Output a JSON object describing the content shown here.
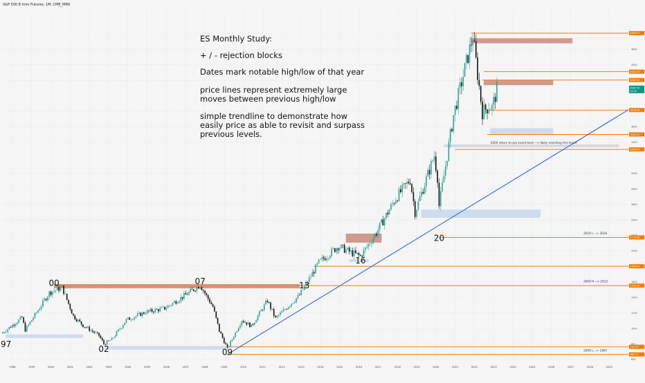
{
  "header": {
    "symbol": "S&P 500 E-mini Futures, 1M, CME_MINI",
    "currency": "USD"
  },
  "notes": [
    "ES Monthly Study:",
    "+ / - rejection blocks",
    "Dates mark notable high/low of that year",
    "price lines represent extremely large",
    "moves between previous high/low",
    "simple trendline to demonstrate how",
    "easily price as able to revisit and surpass",
    "previous levels."
  ],
  "chart_data": {
    "type": "candlestick",
    "x_range": [
      "1997-07",
      "2030-01"
    ],
    "ylim": [
      600,
      5200
    ],
    "x_ticks": [
      "1998",
      "1999",
      "2000",
      "2001",
      "2002",
      "2003",
      "2004",
      "2005",
      "2006",
      "2007",
      "2008",
      "2009",
      "2010",
      "2011",
      "2012",
      "2013",
      "2014",
      "2015",
      "2016",
      "2017",
      "2018",
      "2019",
      "2020",
      "2021",
      "2022",
      "2023",
      "2024",
      "2025",
      "2026",
      "2027",
      "2028",
      "2029"
    ],
    "y_ticks": [
      4800,
      4600,
      4400,
      4200,
      3800,
      3600,
      3400,
      3000,
      2800,
      2600,
      2400,
      2200,
      2000,
      1800,
      1600,
      1400,
      1200,
      1000,
      800,
      600
    ],
    "price_series": [
      {
        "date": "1997-07",
        "close": 945
      },
      {
        "date": "1998-07",
        "close": 1140
      },
      {
        "date": "1998-09",
        "close": 980
      },
      {
        "date": "1999-12",
        "close": 1460
      },
      {
        "date": "2000-08",
        "close": 1530
      },
      {
        "date": "2001-03",
        "close": 1160
      },
      {
        "date": "2001-09",
        "close": 1040
      },
      {
        "date": "2002-07",
        "close": 910
      },
      {
        "date": "2002-10",
        "close": 800
      },
      {
        "date": "2003-03",
        "close": 860
      },
      {
        "date": "2003-12",
        "close": 1110
      },
      {
        "date": "2004-12",
        "close": 1210
      },
      {
        "date": "2005-12",
        "close": 1260
      },
      {
        "date": "2006-12",
        "close": 1420
      },
      {
        "date": "2007-10",
        "close": 1560
      },
      {
        "date": "2008-06",
        "close": 1280
      },
      {
        "date": "2008-10",
        "close": 970
      },
      {
        "date": "2009-03",
        "close": 740
      },
      {
        "date": "2009-12",
        "close": 1110
      },
      {
        "date": "2010-06",
        "close": 1030
      },
      {
        "date": "2011-04",
        "close": 1360
      },
      {
        "date": "2011-09",
        "close": 1130
      },
      {
        "date": "2012-12",
        "close": 1430
      },
      {
        "date": "2013-12",
        "close": 1850
      },
      {
        "date": "2014-12",
        "close": 2060
      },
      {
        "date": "2015-08",
        "close": 1980
      },
      {
        "date": "2016-02",
        "close": 1930
      },
      {
        "date": "2016-12",
        "close": 2240
      },
      {
        "date": "2017-12",
        "close": 2680
      },
      {
        "date": "2018-09",
        "close": 2920
      },
      {
        "date": "2018-12",
        "close": 2500
      },
      {
        "date": "2019-12",
        "close": 3230
      },
      {
        "date": "2020-02",
        "close": 2950
      },
      {
        "date": "2020-03",
        "close": 2580
      },
      {
        "date": "2020-12",
        "close": 3750
      },
      {
        "date": "2021-12",
        "close": 4770
      },
      {
        "date": "2022-06",
        "close": 3790
      },
      {
        "date": "2022-10",
        "close": 3870
      },
      {
        "date": "2022-12",
        "close": 3850
      },
      {
        "date": "2023-02",
        "close": 4000
      },
      {
        "date": "2023-03",
        "close": 4087.5
      }
    ],
    "year_marks": [
      {
        "label": "97",
        "date": "1997-09",
        "price": 760
      },
      {
        "label": "00",
        "date": "2000-03",
        "price": 1550
      },
      {
        "label": "02",
        "date": "2002-10",
        "price": 700
      },
      {
        "label": "07",
        "date": "2007-10",
        "price": 1570
      },
      {
        "label": "09",
        "date": "2009-03",
        "price": 660
      },
      {
        "label": "13",
        "date": "2013-03",
        "price": 1520
      },
      {
        "label": "16",
        "date": "2016-02",
        "price": 1840
      },
      {
        "label": "20",
        "date": "2020-03",
        "price": 2130
      }
    ],
    "zones": [
      {
        "kind": "rejection-minus",
        "x1": "2000-03",
        "x2": "2012-12",
        "y1": 1520,
        "y2": 1570
      },
      {
        "kind": "rejection-minus",
        "x1": "2015-05",
        "x2": "2017-03",
        "y1": 2110,
        "y2": 2220
      },
      {
        "kind": "rejection-minus",
        "x1": "2021-11",
        "x2": "2027-02",
        "y1": 4680,
        "y2": 4740
      },
      {
        "kind": "rejection-minus",
        "x1": "2022-07",
        "x2": "2026-02",
        "y1": 4140,
        "y2": 4200
      },
      {
        "kind": "rejection-plus",
        "x1": "1997-09",
        "x2": "2001-09",
        "y1": 880,
        "y2": 920
      },
      {
        "kind": "rejection-plus",
        "x1": "2002-11",
        "x2": "2009-03",
        "y1": 730,
        "y2": 770
      },
      {
        "kind": "rejection-plus",
        "x1": "2015-07",
        "x2": "2016-07",
        "y1": 1860,
        "y2": 1890
      },
      {
        "kind": "rejection-plus",
        "x1": "2019-04",
        "x2": "2025-06",
        "y1": 2430,
        "y2": 2530
      },
      {
        "kind": "rejection-plus",
        "x1": "2020-06",
        "x2": "2029-07",
        "y1": 3340,
        "y2": 3370
      },
      {
        "kind": "rejection-plus",
        "x1": "2022-11",
        "x2": "2026-02",
        "y1": 3500,
        "y2": 3580
      }
    ],
    "price_levels": [
      {
        "value": 4808.25,
        "label": "4808.25",
        "from": "2021-11"
      },
      {
        "value": 4311.5,
        "label": "4311.50",
        "from": "2022-07"
      },
      {
        "value": 4204.3,
        "label": "4204.30",
        "from": "2022-06"
      },
      {
        "value": 3816.5,
        "label": "3816.50",
        "from": "2022-08"
      },
      {
        "value": 3502.0,
        "label": "3502.00",
        "from": "2022-09"
      },
      {
        "value": 3309.0,
        "label": "3309.00",
        "from": "2021-01"
      },
      {
        "value": 2174.0,
        "label": "2174.00",
        "from": "2020-03"
      },
      {
        "value": 1802.0,
        "label": "1802.00",
        "from": "2013-09"
      },
      {
        "value": 1553.0,
        "label": "1553.00",
        "from": "2000-03"
      },
      {
        "value": 763.25,
        "label": "763.25",
        "from": "2009-03"
      },
      {
        "value": 665.75,
        "label": "665.75",
        "from": "2009-03"
      }
    ],
    "current_price": {
      "value": 4087.5,
      "label": "4087.50",
      "countdown": "3d 5h"
    },
    "level_annotations": [
      {
        "text": "2020 return to pre-covid level --> likely revisiting this level?",
        "date": "2022-11",
        "price": 3370
      },
      {
        "text": "2020 L --> 2016",
        "date": "2027-09",
        "price": 2200
      },
      {
        "text": "2000 H --> 2013",
        "date": "2027-09",
        "price": 1580
      },
      {
        "text": "2009 L --> 1997",
        "date": "2027-09",
        "price": 690
      }
    ],
    "trendline": {
      "from": {
        "date": "2009-03",
        "price": 665
      },
      "to": {
        "date": "2030-01",
        "price": 3820
      }
    },
    "colors": {
      "bull": "#26a69a",
      "bear": "#111111",
      "trend": "#2962ff",
      "level": "#f57c00",
      "rejection_minus": "#c98b7b",
      "rejection_plus": "#c7d7ef",
      "price_tag": "#089981"
    }
  }
}
